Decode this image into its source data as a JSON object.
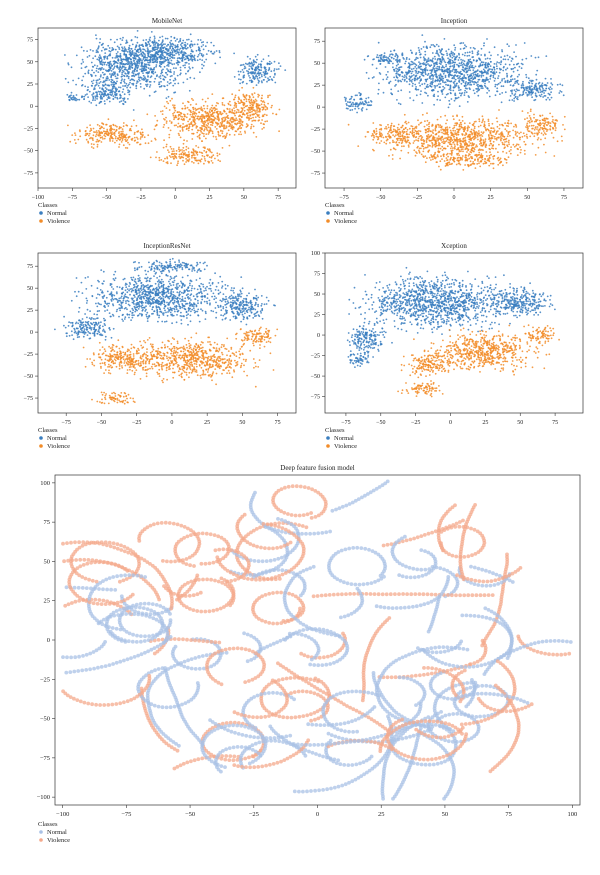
{
  "colors": {
    "normal": "#3a7ebf",
    "violence": "#f28c28",
    "normal_light": "#a9c1e6",
    "violence_light": "#f4a98c",
    "axis": "#333333"
  },
  "chart_data": [
    {
      "type": "scatter",
      "title": "MobileNet",
      "xlim": [
        -100,
        88
      ],
      "ylim": [
        -92,
        88
      ],
      "xticks": [
        -100,
        -75,
        -50,
        -25,
        0,
        25,
        50,
        75
      ],
      "yticks": [
        -75,
        -50,
        -25,
        0,
        25,
        50,
        75
      ],
      "legend_title": "Classes",
      "legend_position": "below",
      "series": [
        {
          "name": "Normal",
          "clusters": [
            [
              -30,
              45,
              45,
              32
            ],
            [
              -5,
              62,
              40,
              18
            ],
            [
              -75,
              10,
              6,
              8
            ],
            [
              60,
              40,
              18,
              18
            ],
            [
              -50,
              15,
              20,
              15
            ]
          ]
        },
        {
          "name": "Violence",
          "clusters": [
            [
              25,
              -15,
              40,
              25
            ],
            [
              -45,
              -32,
              30,
              15
            ],
            [
              10,
              -55,
              25,
              12
            ],
            [
              55,
              0,
              18,
              20
            ]
          ]
        }
      ]
    },
    {
      "type": "scatter",
      "title": "Inception",
      "xlim": [
        -88,
        88
      ],
      "ylim": [
        -92,
        90
      ],
      "xticks": [
        -75,
        -50,
        -25,
        0,
        25,
        50,
        75
      ],
      "yticks": [
        -75,
        -50,
        -25,
        0,
        25,
        50,
        75
      ],
      "legend_title": "Classes",
      "legend_position": "below",
      "series": [
        {
          "name": "Normal",
          "clusters": [
            [
              0,
              40,
              55,
              35
            ],
            [
              -45,
              55,
              15,
              8
            ],
            [
              -65,
              5,
              12,
              12
            ],
            [
              55,
              20,
              20,
              15
            ]
          ]
        },
        {
          "name": "Violence",
          "clusters": [
            [
              5,
              -35,
              60,
              25
            ],
            [
              -40,
              -30,
              20,
              12
            ],
            [
              10,
              -60,
              30,
              10
            ],
            [
              60,
              -20,
              15,
              15
            ]
          ]
        }
      ]
    },
    {
      "type": "scatter",
      "title": "InceptionResNet",
      "xlim": [
        -95,
        88
      ],
      "ylim": [
        -92,
        90
      ],
      "xticks": [
        -75,
        -50,
        -25,
        0,
        25,
        50,
        75
      ],
      "yticks": [
        -75,
        -50,
        -25,
        0,
        25,
        50,
        75
      ],
      "legend_title": "Classes",
      "legend_position": "below",
      "series": [
        {
          "name": "Normal",
          "clusters": [
            [
              -10,
              40,
              55,
              30
            ],
            [
              -60,
              5,
              20,
              15
            ],
            [
              50,
              30,
              20,
              20
            ],
            [
              0,
              75,
              30,
              8
            ]
          ]
        },
        {
          "name": "Violence",
          "clusters": [
            [
              15,
              -30,
              45,
              25
            ],
            [
              -35,
              -30,
              25,
              18
            ],
            [
              -40,
              -75,
              15,
              8
            ],
            [
              60,
              -5,
              15,
              12
            ]
          ]
        }
      ]
    },
    {
      "type": "scatter",
      "title": "Xception",
      "xlim": [
        -90,
        95
      ],
      "ylim": [
        -95,
        100
      ],
      "xticks": [
        -75,
        -50,
        -25,
        0,
        25,
        50,
        75
      ],
      "yticks": [
        -75,
        -50,
        -25,
        0,
        25,
        50,
        75,
        100
      ],
      "legend_title": "Classes",
      "legend_position": "below",
      "series": [
        {
          "name": "Normal",
          "clusters": [
            [
              -10,
              40,
              55,
              35
            ],
            [
              -60,
              -5,
              15,
              20
            ],
            [
              50,
              40,
              25,
              20
            ],
            [
              -65,
              -30,
              10,
              10
            ]
          ]
        },
        {
          "name": "Violence",
          "clusters": [
            [
              25,
              -20,
              40,
              25
            ],
            [
              -20,
              -65,
              15,
              10
            ],
            [
              -15,
              -35,
              20,
              15
            ],
            [
              65,
              0,
              12,
              12
            ]
          ]
        }
      ]
    },
    {
      "type": "scatter",
      "title": "Deep feature fusion model",
      "xlim": [
        -103,
        103
      ],
      "ylim": [
        -105,
        105
      ],
      "xticks": [
        -100,
        -75,
        -50,
        -25,
        0,
        25,
        50,
        75,
        100
      ],
      "yticks": [
        -100,
        -75,
        -50,
        -25,
        0,
        25,
        50,
        75,
        100
      ],
      "legend_title": "Classes",
      "legend_position": "below",
      "series": [
        {
          "name": "Normal"
        },
        {
          "name": "Violence"
        }
      ]
    }
  ]
}
